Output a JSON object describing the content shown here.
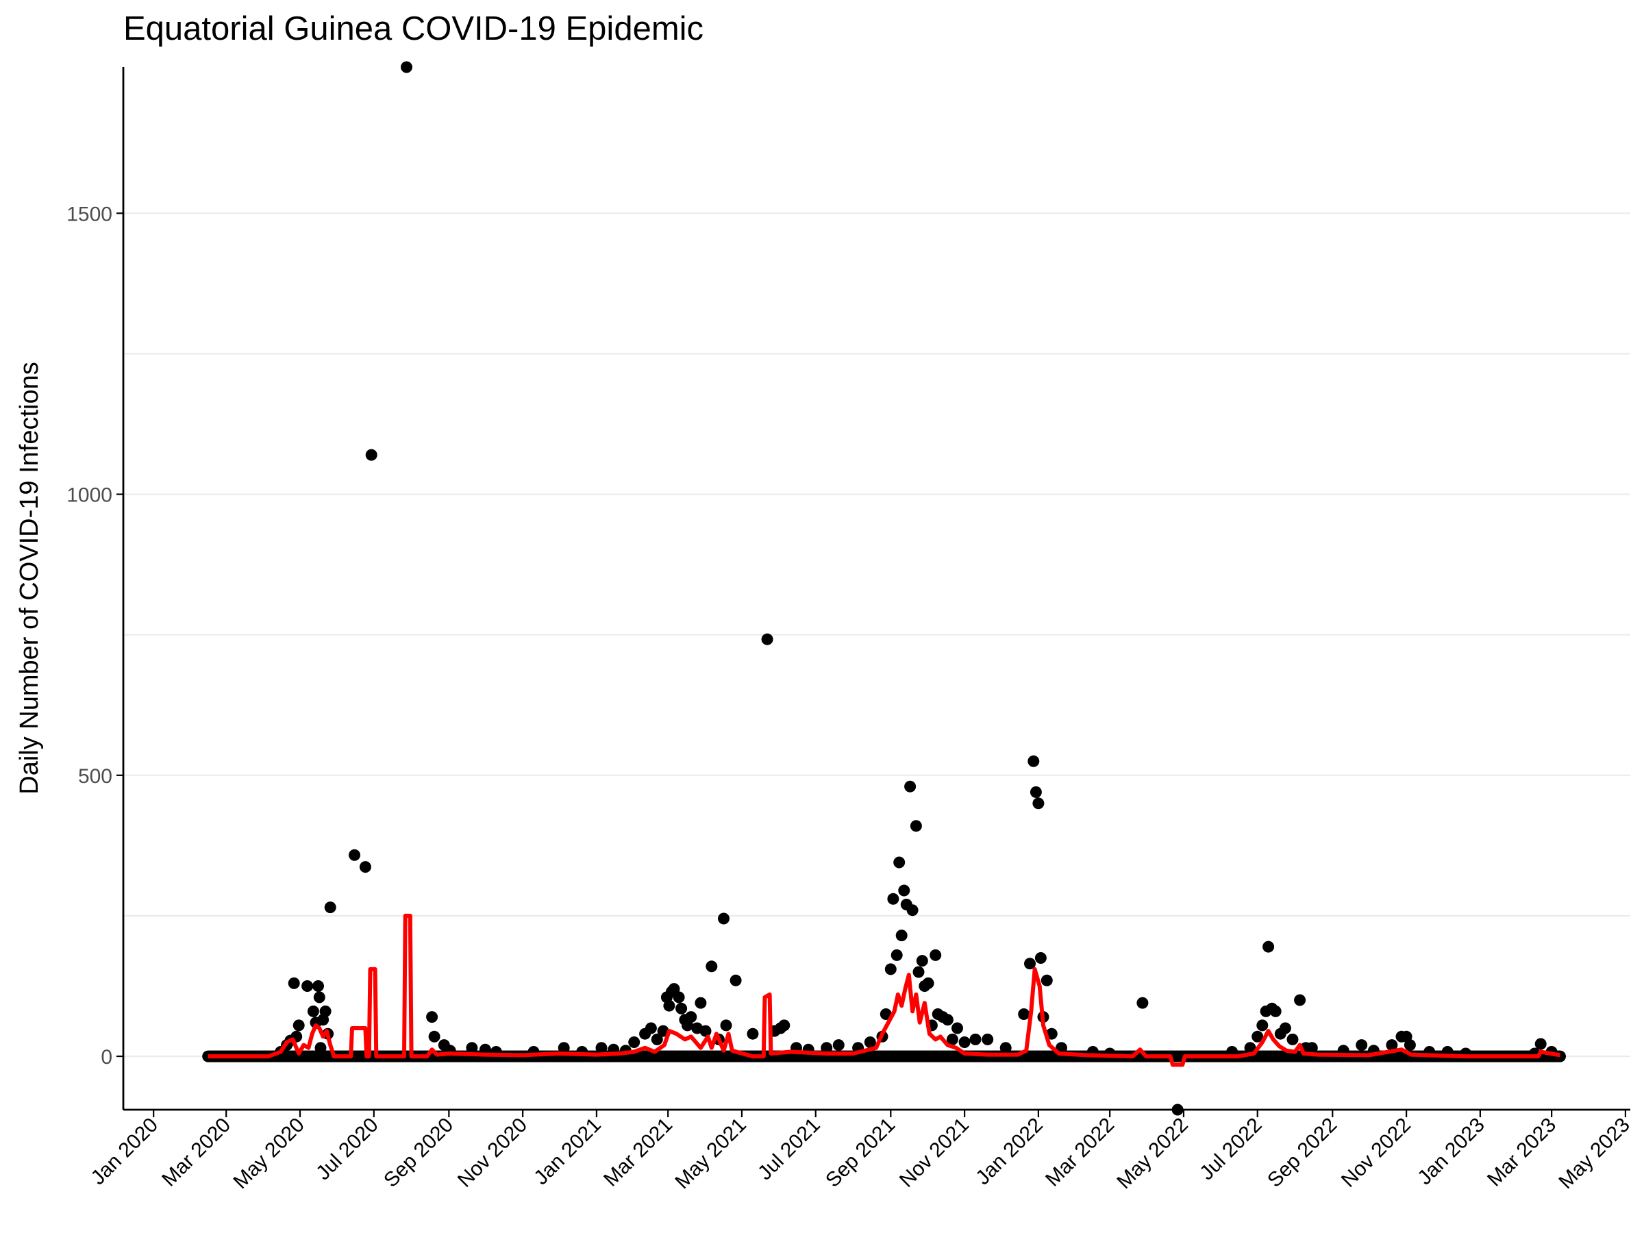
{
  "chart_data": {
    "type": "scatter",
    "title": "Equatorial Guinea COVID-19 Epidemic",
    "xlabel": "",
    "ylabel": "Daily Number of COVID-19 Infections",
    "x_type": "date",
    "xlim": [
      "2019-12-07",
      "2023-05-05"
    ],
    "ylim": [
      -95,
      1760
    ],
    "y_ticks": [
      0,
      500,
      1000,
      1500
    ],
    "y_tick_labels": [
      "0",
      "500",
      "1000",
      "1500"
    ],
    "y_minor_ticks": [
      250,
      750,
      1250
    ],
    "x_ticks": [
      "2020-01-01",
      "2020-03-01",
      "2020-05-01",
      "2020-07-01",
      "2020-09-01",
      "2020-11-01",
      "2021-01-01",
      "2021-03-01",
      "2021-05-01",
      "2021-07-01",
      "2021-09-01",
      "2021-11-01",
      "2022-01-01",
      "2022-03-01",
      "2022-05-01",
      "2022-07-01",
      "2022-09-01",
      "2022-11-01",
      "2023-01-01",
      "2023-03-01",
      "2023-05-01"
    ],
    "x_tick_labels": [
      "Jan 2020",
      "Mar 2020",
      "May 2020",
      "Jul 2020",
      "Sep 2020",
      "Nov 2020",
      "Jan 2021",
      "Mar 2021",
      "May 2021",
      "Jul 2021",
      "Sep 2021",
      "Nov 2021",
      "Jan 2022",
      "Mar 2022",
      "May 2022",
      "Jul 2022",
      "Sep 2022",
      "Nov 2022",
      "Jan 2023",
      "Mar 2023",
      "May 2023"
    ],
    "grid": true,
    "legend": "none",
    "series": [
      {
        "kind": "points",
        "color": "#000000",
        "baseline_range": [
          "2020-02-15",
          "2023-03-08"
        ],
        "baseline_value": 0,
        "points": [
          [
            "2020-04-15",
            8
          ],
          [
            "2020-04-20",
            20
          ],
          [
            "2020-04-23",
            28
          ],
          [
            "2020-04-26",
            130
          ],
          [
            "2020-04-28",
            35
          ],
          [
            "2020-04-30",
            55
          ],
          [
            "2020-05-07",
            125
          ],
          [
            "2020-05-12",
            80
          ],
          [
            "2020-05-14",
            60
          ],
          [
            "2020-05-16",
            125
          ],
          [
            "2020-05-17",
            105
          ],
          [
            "2020-05-18",
            15
          ],
          [
            "2020-05-20",
            65
          ],
          [
            "2020-05-22",
            80
          ],
          [
            "2020-05-24",
            40
          ],
          [
            "2020-05-26",
            265
          ],
          [
            "2020-06-15",
            358
          ],
          [
            "2020-06-24",
            337
          ],
          [
            "2020-06-29",
            1070
          ],
          [
            "2020-07-28",
            1760
          ],
          [
            "2020-08-18",
            70
          ],
          [
            "2020-08-20",
            35
          ],
          [
            "2020-08-28",
            20
          ],
          [
            "2020-09-02",
            10
          ],
          [
            "2020-09-20",
            15
          ],
          [
            "2020-10-01",
            12
          ],
          [
            "2020-10-10",
            8
          ],
          [
            "2020-11-10",
            8
          ],
          [
            "2020-12-05",
            15
          ],
          [
            "2020-12-20",
            8
          ],
          [
            "2021-01-05",
            15
          ],
          [
            "2021-01-15",
            12
          ],
          [
            "2021-01-25",
            10
          ],
          [
            "2021-02-01",
            25
          ],
          [
            "2021-02-10",
            40
          ],
          [
            "2021-02-15",
            50
          ],
          [
            "2021-02-20",
            30
          ],
          [
            "2021-02-25",
            45
          ],
          [
            "2021-02-28",
            105
          ],
          [
            "2021-03-02",
            90
          ],
          [
            "2021-03-04",
            115
          ],
          [
            "2021-03-06",
            120
          ],
          [
            "2021-03-10",
            105
          ],
          [
            "2021-03-12",
            85
          ],
          [
            "2021-03-15",
            65
          ],
          [
            "2021-03-17",
            55
          ],
          [
            "2021-03-20",
            70
          ],
          [
            "2021-03-25",
            50
          ],
          [
            "2021-03-28",
            95
          ],
          [
            "2021-04-01",
            45
          ],
          [
            "2021-04-06",
            160
          ],
          [
            "2021-04-12",
            30
          ],
          [
            "2021-04-16",
            245
          ],
          [
            "2021-04-18",
            55
          ],
          [
            "2021-04-26",
            135
          ],
          [
            "2021-05-10",
            40
          ],
          [
            "2021-05-22",
            742
          ],
          [
            "2021-05-28",
            45
          ],
          [
            "2021-06-02",
            50
          ],
          [
            "2021-06-05",
            55
          ],
          [
            "2021-06-15",
            15
          ],
          [
            "2021-06-25",
            12
          ],
          [
            "2021-07-10",
            15
          ],
          [
            "2021-07-20",
            20
          ],
          [
            "2021-08-05",
            15
          ],
          [
            "2021-08-15",
            25
          ],
          [
            "2021-08-25",
            35
          ],
          [
            "2021-08-28",
            75
          ],
          [
            "2021-09-01",
            155
          ],
          [
            "2021-09-03",
            280
          ],
          [
            "2021-09-06",
            180
          ],
          [
            "2021-09-08",
            345
          ],
          [
            "2021-09-10",
            215
          ],
          [
            "2021-09-12",
            295
          ],
          [
            "2021-09-14",
            270
          ],
          [
            "2021-09-17",
            480
          ],
          [
            "2021-09-19",
            260
          ],
          [
            "2021-09-22",
            410
          ],
          [
            "2021-09-24",
            150
          ],
          [
            "2021-09-27",
            170
          ],
          [
            "2021-09-29",
            125
          ],
          [
            "2021-10-02",
            130
          ],
          [
            "2021-10-05",
            55
          ],
          [
            "2021-10-08",
            180
          ],
          [
            "2021-10-10",
            75
          ],
          [
            "2021-10-14",
            70
          ],
          [
            "2021-10-18",
            65
          ],
          [
            "2021-10-22",
            30
          ],
          [
            "2021-10-26",
            50
          ],
          [
            "2021-11-01",
            25
          ],
          [
            "2021-11-10",
            30
          ],
          [
            "2021-11-20",
            30
          ],
          [
            "2021-12-05",
            15
          ],
          [
            "2021-12-20",
            75
          ],
          [
            "2021-12-25",
            165
          ],
          [
            "2021-12-28",
            525
          ],
          [
            "2021-12-30",
            470
          ],
          [
            "2022-01-01",
            450
          ],
          [
            "2022-01-03",
            175
          ],
          [
            "2022-01-05",
            70
          ],
          [
            "2022-01-08",
            135
          ],
          [
            "2022-01-12",
            40
          ],
          [
            "2022-01-20",
            15
          ],
          [
            "2022-02-15",
            8
          ],
          [
            "2022-03-01",
            5
          ],
          [
            "2022-03-28",
            95
          ],
          [
            "2022-04-26",
            -95
          ],
          [
            "2022-06-10",
            8
          ],
          [
            "2022-06-25",
            15
          ],
          [
            "2022-07-01",
            35
          ],
          [
            "2022-07-05",
            55
          ],
          [
            "2022-07-08",
            80
          ],
          [
            "2022-07-10",
            195
          ],
          [
            "2022-07-13",
            85
          ],
          [
            "2022-07-16",
            80
          ],
          [
            "2022-07-20",
            40
          ],
          [
            "2022-07-24",
            50
          ],
          [
            "2022-07-30",
            30
          ],
          [
            "2022-08-05",
            100
          ],
          [
            "2022-08-10",
            15
          ],
          [
            "2022-08-15",
            15
          ],
          [
            "2022-09-10",
            10
          ],
          [
            "2022-09-25",
            20
          ],
          [
            "2022-10-05",
            10
          ],
          [
            "2022-10-20",
            20
          ],
          [
            "2022-10-28",
            35
          ],
          [
            "2022-11-01",
            35
          ],
          [
            "2022-11-04",
            20
          ],
          [
            "2022-11-20",
            8
          ],
          [
            "2022-12-05",
            8
          ],
          [
            "2022-12-20",
            5
          ],
          [
            "2023-02-15",
            5
          ],
          [
            "2023-02-20",
            22
          ],
          [
            "2023-03-01",
            8
          ]
        ]
      },
      {
        "kind": "line",
        "color": "#ff0000",
        "points": [
          [
            "2020-02-15",
            0
          ],
          [
            "2020-04-05",
            0
          ],
          [
            "2020-04-15",
            8
          ],
          [
            "2020-04-20",
            25
          ],
          [
            "2020-04-25",
            30
          ],
          [
            "2020-04-30",
            5
          ],
          [
            "2020-05-04",
            20
          ],
          [
            "2020-05-08",
            15
          ],
          [
            "2020-05-11",
            40
          ],
          [
            "2020-05-14",
            55
          ],
          [
            "2020-05-17",
            50
          ],
          [
            "2020-05-20",
            35
          ],
          [
            "2020-05-23",
            45
          ],
          [
            "2020-05-26",
            20
          ],
          [
            "2020-05-29",
            0
          ],
          [
            "2020-06-12",
            0
          ],
          [
            "2020-06-13",
            50
          ],
          [
            "2020-06-24",
            50
          ],
          [
            "2020-06-25",
            0
          ],
          [
            "2020-06-27",
            0
          ],
          [
            "2020-06-28",
            155
          ],
          [
            "2020-07-02",
            155
          ],
          [
            "2020-07-03",
            0
          ],
          [
            "2020-07-26",
            0
          ],
          [
            "2020-07-27",
            250
          ],
          [
            "2020-07-31",
            250
          ],
          [
            "2020-08-01",
            0
          ],
          [
            "2020-08-14",
            0
          ],
          [
            "2020-08-18",
            12
          ],
          [
            "2020-08-22",
            3
          ],
          [
            "2020-09-01",
            5
          ],
          [
            "2020-10-01",
            3
          ],
          [
            "2020-11-01",
            2
          ],
          [
            "2020-12-01",
            5
          ],
          [
            "2021-01-01",
            3
          ],
          [
            "2021-01-20",
            5
          ],
          [
            "2021-02-01",
            8
          ],
          [
            "2021-02-10",
            15
          ],
          [
            "2021-02-18",
            8
          ],
          [
            "2021-02-26",
            20
          ],
          [
            "2021-03-02",
            45
          ],
          [
            "2021-03-08",
            40
          ],
          [
            "2021-03-15",
            30
          ],
          [
            "2021-03-20",
            35
          ],
          [
            "2021-03-28",
            15
          ],
          [
            "2021-04-03",
            35
          ],
          [
            "2021-04-06",
            15
          ],
          [
            "2021-04-10",
            40
          ],
          [
            "2021-04-16",
            10
          ],
          [
            "2021-04-20",
            40
          ],
          [
            "2021-04-23",
            10
          ],
          [
            "2021-05-10",
            0
          ],
          [
            "2021-05-19",
            0
          ],
          [
            "2021-05-20",
            105
          ],
          [
            "2021-05-24",
            110
          ],
          [
            "2021-05-25",
            5
          ],
          [
            "2021-06-10",
            8
          ],
          [
            "2021-07-10",
            5
          ],
          [
            "2021-08-01",
            5
          ],
          [
            "2021-08-20",
            15
          ],
          [
            "2021-08-25",
            40
          ],
          [
            "2021-08-30",
            60
          ],
          [
            "2021-09-04",
            80
          ],
          [
            "2021-09-07",
            110
          ],
          [
            "2021-09-10",
            90
          ],
          [
            "2021-09-13",
            120
          ],
          [
            "2021-09-16",
            145
          ],
          [
            "2021-09-19",
            80
          ],
          [
            "2021-09-22",
            110
          ],
          [
            "2021-09-25",
            60
          ],
          [
            "2021-09-29",
            95
          ],
          [
            "2021-10-03",
            40
          ],
          [
            "2021-10-08",
            30
          ],
          [
            "2021-10-12",
            35
          ],
          [
            "2021-10-18",
            20
          ],
          [
            "2021-10-25",
            15
          ],
          [
            "2021-11-01",
            5
          ],
          [
            "2021-11-20",
            3
          ],
          [
            "2021-12-15",
            3
          ],
          [
            "2021-12-22",
            10
          ],
          [
            "2021-12-26",
            80
          ],
          [
            "2021-12-29",
            155
          ],
          [
            "2022-01-02",
            125
          ],
          [
            "2022-01-05",
            55
          ],
          [
            "2022-01-10",
            20
          ],
          [
            "2022-01-18",
            5
          ],
          [
            "2022-02-10",
            2
          ],
          [
            "2022-03-20",
            0
          ],
          [
            "2022-03-26",
            12
          ],
          [
            "2022-03-31",
            0
          ],
          [
            "2022-04-20",
            0
          ],
          [
            "2022-04-22",
            -15
          ],
          [
            "2022-04-30",
            -15
          ],
          [
            "2022-05-02",
            0
          ],
          [
            "2022-06-15",
            0
          ],
          [
            "2022-06-28",
            5
          ],
          [
            "2022-07-05",
            25
          ],
          [
            "2022-07-10",
            45
          ],
          [
            "2022-07-14",
            30
          ],
          [
            "2022-07-19",
            18
          ],
          [
            "2022-07-25",
            10
          ],
          [
            "2022-08-01",
            8
          ],
          [
            "2022-08-05",
            20
          ],
          [
            "2022-08-08",
            5
          ],
          [
            "2022-08-20",
            3
          ],
          [
            "2022-10-01",
            2
          ],
          [
            "2022-10-28",
            12
          ],
          [
            "2022-11-05",
            3
          ],
          [
            "2022-12-20",
            0
          ],
          [
            "2023-02-18",
            0
          ],
          [
            "2023-02-20",
            8
          ],
          [
            "2023-03-08",
            2
          ]
        ]
      }
    ]
  }
}
